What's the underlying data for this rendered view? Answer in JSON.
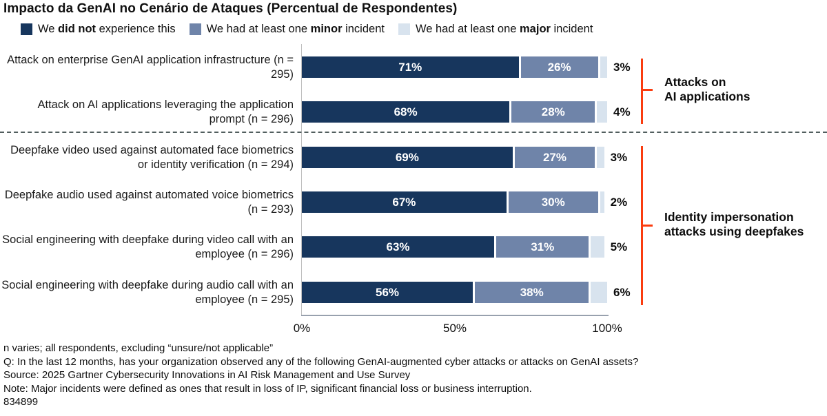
{
  "title": "Impacto da GenAI no Cenário de Ataques (Percentual de Respondentes)",
  "legend": {
    "items": [
      {
        "pre": "We ",
        "bold": "did not",
        "post": " experience this",
        "color": "#17365D"
      },
      {
        "pre": "We had at least one ",
        "bold": "minor",
        "post": " incident",
        "color": "#6F84A9"
      },
      {
        "pre": "We had at least one ",
        "bold": "major",
        "post": " incident",
        "color": "#D8E3EE"
      }
    ]
  },
  "chart_data": {
    "type": "bar",
    "orientation": "horizontal",
    "stacked": true,
    "title": "Impacto da GenAI no Cenário de Ataques (Percentual de Respondentes)",
    "xlim": [
      0,
      100
    ],
    "xticks": [
      "0%",
      "50%",
      "100%"
    ],
    "categories": [
      "Attack on enterprise GenAI application infrastructure (n = 295)",
      "Attack on AI applications leveraging the application prompt (n = 296)",
      "Deepfake video used against automated face biometrics or identity verification (n = 294)",
      "Deepfake audio used against automated voice biometrics (n = 293)",
      "Social engineering with deepfake during video call with an employee (n = 296)",
      "Social engineering with deepfake during audio call with an employee (n = 295)"
    ],
    "series": [
      {
        "name": "We did not experience this",
        "color": "#17365D",
        "values": [
          71,
          68,
          69,
          67,
          63,
          56
        ]
      },
      {
        "name": "We had at least one minor incident",
        "color": "#6F84A9",
        "values": [
          26,
          28,
          27,
          30,
          31,
          38
        ]
      },
      {
        "name": "We had at least one major incident",
        "color": "#D8E3EE",
        "values": [
          3,
          4,
          3,
          2,
          5,
          6
        ]
      }
    ],
    "groups": [
      {
        "label": "Attacks on AI applications",
        "rows": [
          0,
          1
        ]
      },
      {
        "label": "Identity impersonation attacks using deepfakes",
        "rows": [
          2,
          3,
          4,
          5
        ]
      }
    ],
    "legend_position": "top",
    "grid": false
  },
  "annotations": {
    "bracket_color": "#FA3C0F",
    "group1_line1": "Attacks on",
    "group1_line2": "AI applications",
    "group2_line1": "Identity impersonation",
    "group2_line2": "attacks using deepfakes"
  },
  "footnotes": [
    "n varies; all respondents, excluding “unsure/not applicable”",
    "Q: In the last 12 months, has your organization observed any of the following GenAI-augmented cyber attacks or attacks on GenAI assets?",
    "Source: 2025 Gartner Cybersecurity Innovations in AI Risk Management and Use Survey",
    "Note: Major incidents were defined as ones that result in loss of IP, significant financial loss or business interruption.",
    "834899"
  ]
}
